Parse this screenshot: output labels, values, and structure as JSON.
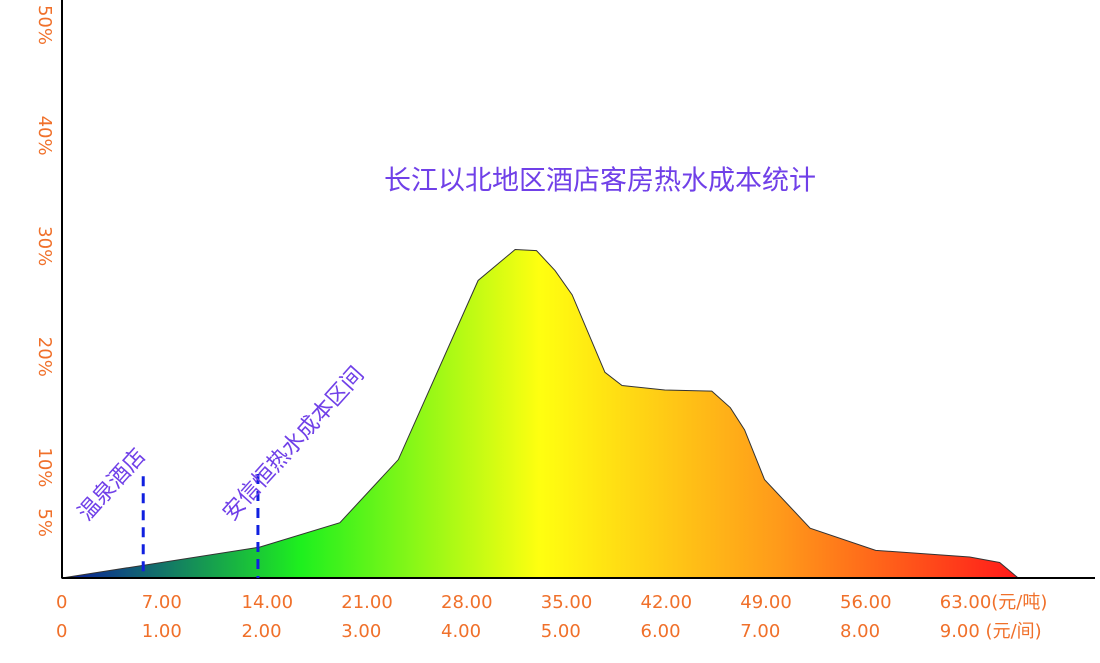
{
  "chart_data": {
    "type": "area",
    "title": "长江以北地区酒店客房热水成本统计",
    "title_color": "#7040e8",
    "x": [
      0,
      13.9,
      19.5,
      23.6,
      29.2,
      31.8,
      33.3,
      34.6,
      35.8,
      38.1,
      39.3,
      42.3,
      45.6,
      46.9,
      47.9,
      49.3,
      52.5,
      57.1,
      63.7,
      65.8,
      67.1
    ],
    "values": [
      0,
      2.8,
      5.0,
      10.7,
      26.9,
      29.7,
      29.6,
      27.8,
      25.6,
      18.6,
      17.4,
      17.0,
      16.9,
      15.4,
      13.4,
      8.9,
      4.5,
      2.5,
      1.9,
      1.4,
      0
    ],
    "gradient": [
      "#0a1a9e",
      "#1ef01e",
      "#ffff10",
      "#ff9a1a",
      "#ff1a1a"
    ],
    "line_color": "#333333",
    "xlim": [
      0,
      72
    ],
    "ylim": [
      0,
      50
    ],
    "xticks": [
      {
        "value": 0,
        "label": "0"
      },
      {
        "value": 7,
        "label": "7.00"
      },
      {
        "value": 14,
        "label": "14.00"
      },
      {
        "value": 21,
        "label": "21.00"
      },
      {
        "value": 28,
        "label": "28.00"
      },
      {
        "value": 35,
        "label": "35.00"
      },
      {
        "value": 42,
        "label": "42.00"
      },
      {
        "value": 49,
        "label": "49.00"
      },
      {
        "value": 56,
        "label": "56.00"
      },
      {
        "value": 63,
        "label": "63.00(元/吨)"
      }
    ],
    "x2lim": [
      0,
      10.2857
    ],
    "x2ticks": [
      {
        "value": 0,
        "label": "0"
      },
      {
        "value": 1,
        "label": "1.00"
      },
      {
        "value": 2,
        "label": "2.00"
      },
      {
        "value": 3,
        "label": "3.00"
      },
      {
        "value": 4,
        "label": "4.00"
      },
      {
        "value": 5,
        "label": "5.00"
      },
      {
        "value": 6,
        "label": "6.00"
      },
      {
        "value": 7,
        "label": "7.00"
      },
      {
        "value": 8,
        "label": "8.00"
      },
      {
        "value": 9,
        "label": "9.00  (元/间)"
      }
    ],
    "yticks": [
      {
        "value": 5,
        "label": "5%"
      },
      {
        "value": 10,
        "label": "10%"
      },
      {
        "value": 20,
        "label": "20%"
      },
      {
        "value": 30,
        "label": "30%"
      },
      {
        "value": 40,
        "label": "40%"
      },
      {
        "value": 50,
        "label": "50%"
      }
    ],
    "annotations": [
      {
        "text": "温泉酒店",
        "x": 5.7,
        "top": 9.2
      },
      {
        "text": "安信恒热水成本区间",
        "x": 13.75,
        "top": 9.4
      }
    ],
    "annotation_color": "#1020e0"
  }
}
